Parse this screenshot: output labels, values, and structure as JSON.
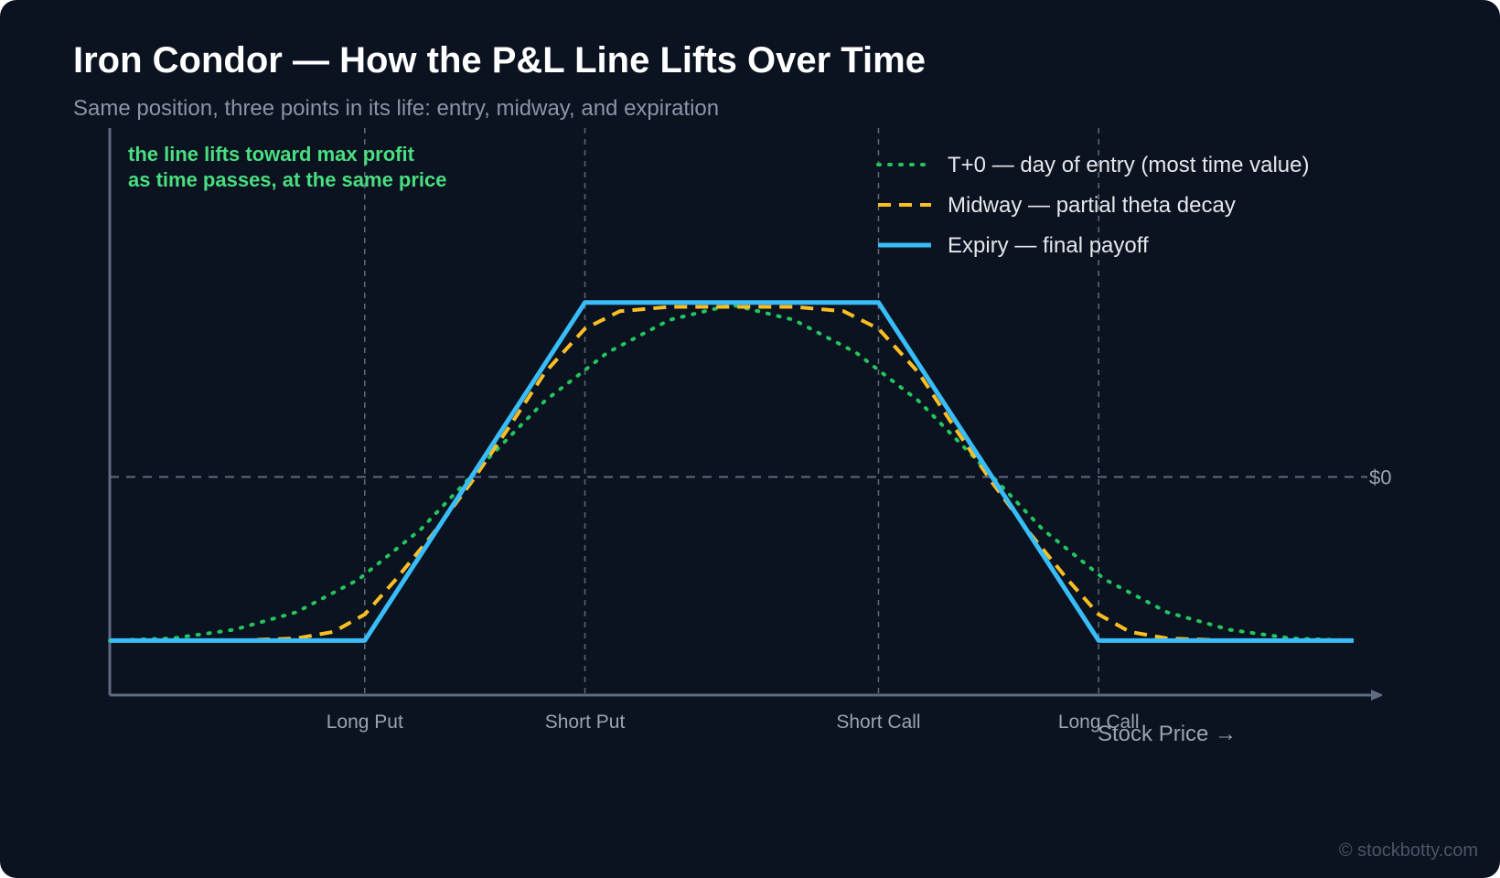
{
  "title": "Iron Condor — How the P&L Line Lifts Over Time",
  "subtitle": "Same position, three points in its life: entry, midway, and expiration",
  "annotation": [
    "the line lifts toward max profit",
    "as time passes, at the same price"
  ],
  "watermark": "© stockbotty.com",
  "colors": {
    "background": "#0b1220",
    "axis": "#5f6b80",
    "grid": "#5a6577",
    "tick_text": "#9aa3b2",
    "annotation": "#4ade80",
    "legend_text": "#e5e7eb"
  },
  "chart_data": {
    "type": "line",
    "xlabel": "Stock Price →",
    "ylabel": "",
    "zero_label": "$0",
    "x_range": [
      0,
      100
    ],
    "y_range": [
      -100,
      160
    ],
    "strikes": [
      {
        "label": "Long Put",
        "x": 20.5
      },
      {
        "label": "Short Put",
        "x": 38.2
      },
      {
        "label": "Short Call",
        "x": 61.8
      },
      {
        "label": "Long Call",
        "x": 79.5
      }
    ],
    "series": [
      {
        "name": "T+0 — day of entry (most time value)",
        "style": "dotted",
        "color": "#22c55e",
        "x": [
          0,
          5,
          10,
          15,
          20,
          25,
          30,
          35,
          38.2,
          40,
          45,
          50,
          55,
          60,
          61.8,
          65,
          70,
          75,
          80,
          85,
          90,
          95,
          100
        ],
        "y": [
          -75,
          -74,
          -70,
          -62,
          -47,
          -24,
          6,
          35,
          49,
          57,
          72,
          79,
          72,
          57,
          49,
          35,
          6,
          -24,
          -47,
          -62,
          -70,
          -74,
          -75
        ]
      },
      {
        "name": "Midway — partial theta decay",
        "style": "dashed",
        "color": "#fbbf24",
        "x": [
          0,
          10,
          15,
          18,
          20.5,
          23,
          26,
          29,
          32,
          35,
          38.2,
          41,
          45,
          50,
          55,
          59,
          61.8,
          65,
          68,
          71,
          74,
          77,
          79.5,
          82,
          85,
          90,
          100
        ],
        "y": [
          -75,
          -75,
          -74,
          -71,
          -63,
          -47,
          -26,
          -3,
          22,
          48,
          68,
          76,
          78,
          78,
          78,
          76,
          68,
          48,
          22,
          -3,
          -26,
          -47,
          -63,
          -71,
          -74,
          -75,
          -75
        ]
      },
      {
        "name": "Expiry — final payoff",
        "style": "solid",
        "color": "#38bdf8",
        "x": [
          0,
          20.5,
          38.2,
          61.8,
          79.5,
          100
        ],
        "y": [
          -75,
          -75,
          80,
          80,
          -75,
          -75
        ]
      }
    ]
  }
}
